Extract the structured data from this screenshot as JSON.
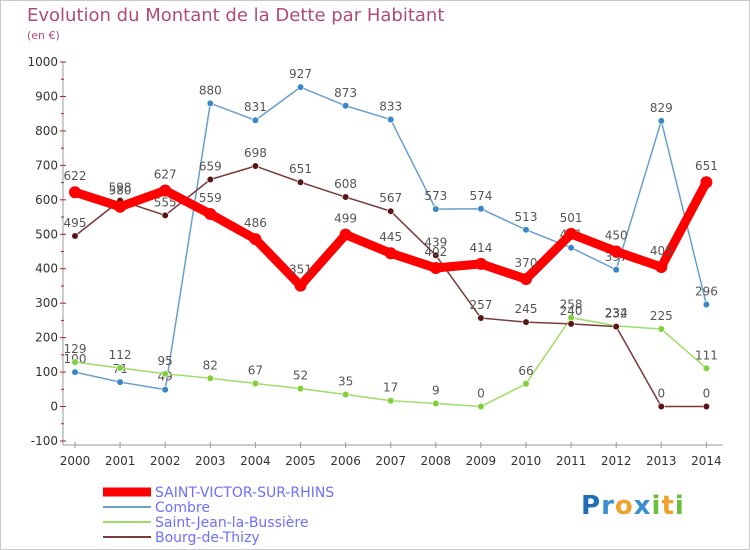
{
  "title": "Evolution du Montant de la Dette par Habitant",
  "unit": "(en €)",
  "logo": {
    "text": "Proxiti",
    "letters": [
      "P",
      "r",
      "o",
      "x",
      "i",
      "t",
      "i"
    ],
    "colors": [
      "#1f6fb5",
      "#3a8fd0",
      "#f0a22e",
      "#3a8fd0",
      "#6cbf3a",
      "#f0a22e",
      "#6cbf3a"
    ]
  },
  "chart_data": {
    "type": "line",
    "x": [
      2000,
      2001,
      2002,
      2003,
      2004,
      2005,
      2006,
      2007,
      2008,
      2009,
      2010,
      2011,
      2012,
      2013,
      2014
    ],
    "ylim": [
      -100,
      1000
    ],
    "yticks": [
      -100,
      0,
      100,
      200,
      300,
      400,
      500,
      600,
      700,
      800,
      900,
      1000
    ],
    "grid": false,
    "legend": "bottom-left",
    "series": [
      {
        "name": "Combre",
        "color": "#6a9fcd",
        "marker": "#3a86c8",
        "values": [
          100,
          71,
          49,
          880,
          831,
          927,
          873,
          833,
          573,
          574,
          513,
          461,
          397,
          829,
          296
        ],
        "labels": [
          "100",
          "71",
          "49",
          "880",
          "831",
          "927",
          "873",
          "833",
          "573",
          "574",
          "513",
          "461",
          "397",
          "829",
          "296"
        ]
      },
      {
        "name": "Saint-Jean-la-Bussière",
        "color": "#9fdc66",
        "marker": "#7fcf3a",
        "values": [
          129,
          112,
          95,
          82,
          67,
          52,
          35,
          17,
          9,
          0,
          66,
          258,
          234,
          225,
          111
        ],
        "labels": [
          "129",
          "112",
          "95",
          "82",
          "67",
          "52",
          "35",
          "17",
          "9",
          "0",
          "66",
          "258",
          "234",
          "225",
          "111"
        ]
      },
      {
        "name": "Bourg-de-Thizy",
        "color": "#7a3a3a",
        "marker": "#5a1414",
        "values": [
          495,
          598,
          555,
          659,
          698,
          651,
          608,
          567,
          439,
          257,
          245,
          240,
          232,
          0,
          0
        ],
        "labels": [
          "495",
          "598",
          "555",
          "659",
          "698",
          "651",
          "608",
          "567",
          "439",
          "257",
          "245",
          "240",
          "232",
          "0",
          "0"
        ]
      },
      {
        "name": "SAINT-VICTOR-SUR-RHINS",
        "color": "#ff0000",
        "marker": "#ff0000",
        "values": [
          622,
          580,
          627,
          559,
          486,
          351,
          499,
          445,
          402,
          414,
          370,
          501,
          450,
          405,
          651
        ],
        "labels": [
          "622",
          "580",
          "627",
          "559",
          "486",
          "351",
          "499",
          "445",
          "402",
          "414",
          "370",
          "501",
          "450",
          "405",
          "651"
        ]
      }
    ],
    "legend_order": [
      "SAINT-VICTOR-SUR-RHINS",
      "Combre",
      "Saint-Jean-la-Bussière",
      "Bourg-de-Thizy"
    ]
  }
}
